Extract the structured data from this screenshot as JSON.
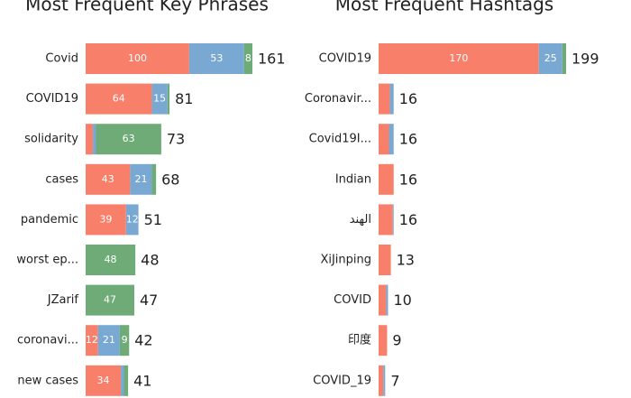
{
  "chart_data": [
    {
      "type": "stacked-bar-h",
      "title": "Most Frequent Key Phrases",
      "categories": [
        "Covid",
        "COVID19",
        "solidarity",
        "cases",
        "pandemic",
        "worst ep...",
        "JZarif",
        "coronavi...",
        "new cases"
      ],
      "series": [
        {
          "color": "#f8806b",
          "values": [
            100,
            64,
            7,
            43,
            39,
            0,
            0,
            12,
            34
          ]
        },
        {
          "color": "#79a9d2",
          "values": [
            53,
            15,
            3,
            21,
            12,
            0,
            0,
            21,
            3
          ]
        },
        {
          "color": "#6eab76",
          "values": [
            8,
            2,
            63,
            4,
            0,
            48,
            47,
            9,
            4
          ]
        }
      ],
      "totals": [
        161,
        81,
        73,
        68,
        51,
        48,
        47,
        42,
        41
      ]
    },
    {
      "type": "stacked-bar-h",
      "title": "Most Frequent Hashtags",
      "categories": [
        "COVID19",
        "Coronavir...",
        "Covid19I...",
        "Indian",
        "الهند",
        "XiJinping",
        "COVID",
        "印度",
        "COVID_19"
      ],
      "series": [
        {
          "color": "#f8806b",
          "values": [
            170,
            12,
            11,
            16,
            15,
            13,
            8,
            9,
            5
          ]
        },
        {
          "color": "#79a9d2",
          "values": [
            25,
            4,
            5,
            0,
            1,
            0,
            2,
            0,
            2
          ]
        },
        {
          "color": "#6eab76",
          "values": [
            4,
            0,
            0,
            0,
            0,
            0,
            0,
            0,
            0
          ]
        }
      ],
      "totals": [
        199,
        16,
        16,
        16,
        16,
        13,
        10,
        9,
        7
      ]
    }
  ]
}
